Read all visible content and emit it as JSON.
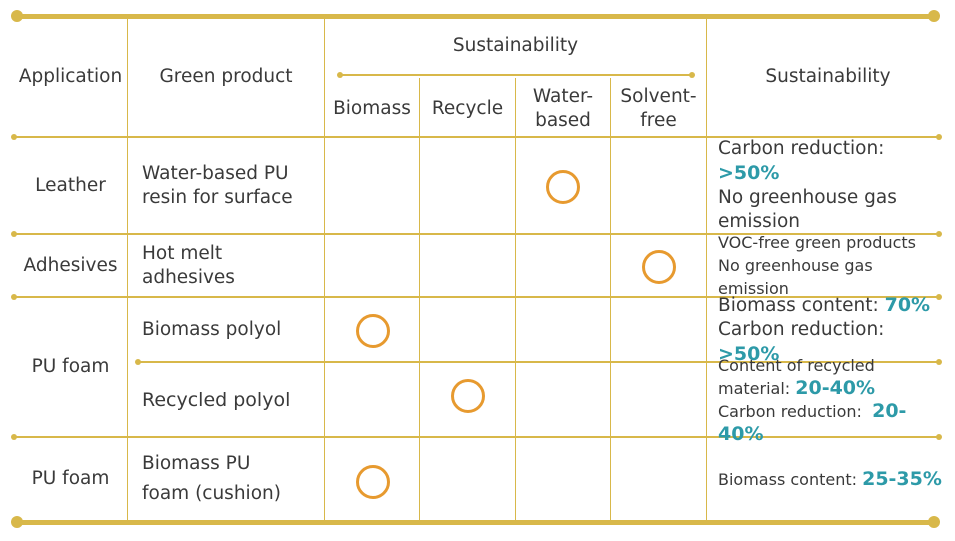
{
  "header": {
    "application": "Application",
    "green_product": "Green product",
    "sustainability_group": "Sustainability",
    "sub": [
      "Biomass",
      "Recycle",
      "Water-\nbased",
      "Solvent-\nfree"
    ],
    "sustainability": "Sustainability"
  },
  "rows": [
    {
      "application": "Leather",
      "product": "Water-based PU\nresin for surface",
      "mark": "Water-based",
      "notes": [
        [
          "Carbon reduction: ",
          ">50%"
        ],
        [
          "No greenhouse gas",
          ""
        ],
        [
          "emission",
          ""
        ]
      ]
    },
    {
      "application": "Adhesives",
      "product": "Hot melt\nadhesives",
      "mark": "Solvent-free",
      "notes": [
        [
          "VOC-free green products",
          ""
        ],
        [
          "No greenhouse gas emission",
          ""
        ]
      ]
    },
    {
      "application": "PU foam",
      "product": "Biomass polyol",
      "mark": "Biomass",
      "notes": [
        [
          "Biomass content: ",
          "70%"
        ],
        [
          "Carbon reduction: ",
          ">50%"
        ]
      ]
    },
    {
      "application": "",
      "product": "Recycled polyol",
      "mark": "Recycle",
      "notes": [
        [
          "Content of recycled",
          ""
        ],
        [
          "material: ",
          "20-40%"
        ],
        [
          "Carbon reduction:  ",
          "20-40%"
        ]
      ]
    },
    {
      "application": "PU foam",
      "product": "Biomass PU\nfoam (cushion)",
      "mark": "Biomass",
      "notes": [
        [
          "Biomass content: ",
          "25-35%"
        ]
      ]
    }
  ],
  "colors": {
    "rule": "#d8b84a",
    "circle": "#e79a2f",
    "highlight": "#2d9aa8",
    "text": "#3a3a3a"
  }
}
